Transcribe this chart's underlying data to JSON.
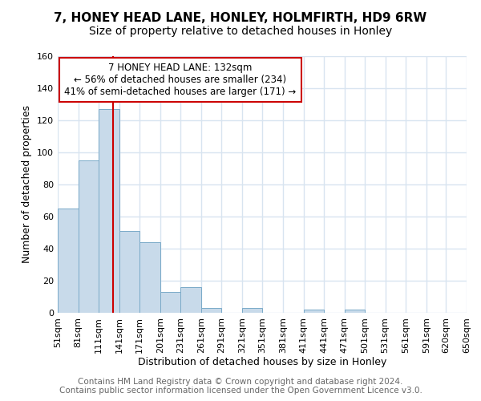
{
  "title": "7, HONEY HEAD LANE, HONLEY, HOLMFIRTH, HD9 6RW",
  "subtitle": "Size of property relative to detached houses in Honley",
  "xlabel": "Distribution of detached houses by size in Honley",
  "ylabel": "Number of detached properties",
  "bin_edges": [
    51,
    81,
    111,
    141,
    171,
    201,
    231,
    261,
    291,
    321,
    351,
    381,
    411,
    441,
    471,
    501,
    531,
    561,
    591,
    620,
    650
  ],
  "bar_heights": [
    65,
    95,
    127,
    51,
    44,
    13,
    16,
    3,
    0,
    3,
    0,
    0,
    2,
    0,
    2,
    0,
    0,
    0,
    0,
    0
  ],
  "bar_color": "#c8daea",
  "bar_edge_color": "#7aaac8",
  "vline_x": 132,
  "vline_color": "#cc0000",
  "ylim": [
    0,
    160
  ],
  "yticks": [
    0,
    20,
    40,
    60,
    80,
    100,
    120,
    140,
    160
  ],
  "annotation_title": "7 HONEY HEAD LANE: 132sqm",
  "annotation_line1": "← 56% of detached houses are smaller (234)",
  "annotation_line2": "41% of semi-detached houses are larger (171) →",
  "annotation_box_color": "#ffffff",
  "annotation_box_edge": "#cc0000",
  "footer_line1": "Contains HM Land Registry data © Crown copyright and database right 2024.",
  "footer_line2": "Contains public sector information licensed under the Open Government Licence v3.0.",
  "background_color": "#ffffff",
  "plot_background_color": "#ffffff",
  "grid_color": "#d8e4f0",
  "title_fontsize": 11,
  "xlabel_fontsize": 9,
  "ylabel_fontsize": 9,
  "tick_fontsize": 8,
  "footer_fontsize": 7.5,
  "annotation_fontsize": 8.5
}
